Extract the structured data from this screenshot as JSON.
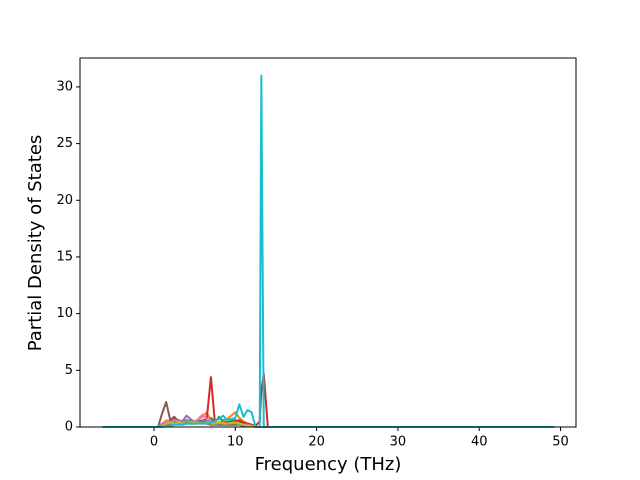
{
  "chart_data": {
    "type": "line",
    "xlabel": "Frequency (THz)",
    "ylabel": "Partial Density of States",
    "x": [
      -6.3,
      0.5,
      1.0,
      1.5,
      2.0,
      2.5,
      3.0,
      3.5,
      4.0,
      5.0,
      6.0,
      6.5,
      7.0,
      7.5,
      8.0,
      8.5,
      9.0,
      10.0,
      10.5,
      11.0,
      11.5,
      12.0,
      12.5,
      13.0,
      13.2,
      13.5,
      14.0,
      49.2
    ],
    "series": [
      {
        "color": "#1f77b4",
        "values": [
          0,
          0,
          0.3,
          0.5,
          0.4,
          0.6,
          0.5,
          0.4,
          0.5,
          0.4,
          0.6,
          0.5,
          0.8,
          0.4,
          0.3,
          0.5,
          0.4,
          0.6,
          0.5,
          0.3,
          0.2,
          0.1,
          0,
          0,
          0,
          0,
          0,
          0
        ]
      },
      {
        "color": "#ff7f0e",
        "values": [
          0,
          0,
          0.2,
          0.6,
          0.5,
          0.8,
          0.4,
          0.5,
          0.6,
          0.5,
          0.9,
          1.3,
          0.5,
          0.3,
          0.4,
          0.6,
          0.7,
          1.3,
          0.8,
          0.5,
          0.3,
          0.2,
          0,
          0,
          0,
          0,
          0,
          0
        ]
      },
      {
        "color": "#2ca02c",
        "values": [
          0,
          0,
          0.1,
          0.3,
          0.4,
          0.5,
          0.6,
          0.5,
          0.6,
          0.4,
          0.5,
          0.4,
          0.3,
          0.4,
          0.9,
          0.5,
          0.4,
          0.6,
          0.5,
          0.4,
          0.3,
          0.2,
          0,
          0,
          0,
          0,
          0,
          0
        ]
      },
      {
        "color": "#d62728",
        "values": [
          0,
          0,
          0.1,
          0.2,
          0.3,
          0.4,
          0.3,
          0.3,
          0.4,
          0.3,
          0.5,
          0.8,
          4.4,
          0.3,
          0.2,
          0.3,
          0.4,
          0.5,
          0.6,
          0.4,
          0.3,
          0.2,
          0.1,
          0.5,
          3.2,
          4.7,
          0,
          0
        ]
      },
      {
        "color": "#9467bd",
        "values": [
          0,
          0,
          0.2,
          0.4,
          0.5,
          0.7,
          0.6,
          0.5,
          1.0,
          0.4,
          0.5,
          0.6,
          0.4,
          0.3,
          0.3,
          0.4,
          0.3,
          0.4,
          0.3,
          0.2,
          0.2,
          0.1,
          0,
          0,
          0,
          0,
          0,
          0
        ]
      },
      {
        "color": "#8c564b",
        "values": [
          0,
          0,
          1.2,
          2.2,
          0.6,
          0.9,
          0.5,
          0.4,
          0.3,
          0.3,
          0.4,
          0.3,
          0.2,
          0.2,
          0.2,
          0.2,
          0.2,
          0.2,
          0.2,
          0.1,
          0.1,
          0.1,
          0,
          0,
          0,
          0,
          0,
          0
        ]
      },
      {
        "color": "#e377c2",
        "values": [
          0,
          0,
          0.3,
          0.5,
          0.4,
          0.6,
          0.5,
          0.4,
          0.5,
          0.4,
          1.1,
          0.7,
          0.5,
          0.3,
          0.3,
          0.4,
          0.3,
          0.4,
          0.3,
          0.2,
          0.2,
          0.1,
          0,
          0,
          0,
          0,
          0,
          0
        ]
      },
      {
        "color": "#7f7f7f",
        "values": [
          0,
          0,
          0.2,
          0.3,
          0.3,
          0.4,
          0.3,
          0.3,
          0.4,
          0.3,
          0.4,
          0.3,
          0.3,
          0.2,
          0.3,
          0.3,
          0.3,
          0.3,
          0.2,
          0.2,
          0.1,
          0.1,
          0,
          0,
          0,
          0,
          0,
          0
        ]
      },
      {
        "color": "#bcbd22",
        "values": [
          0,
          0,
          0.1,
          0.3,
          0.4,
          0.3,
          0.4,
          0.3,
          0.3,
          0.4,
          0.3,
          0.4,
          0.3,
          0.3,
          0.4,
          0.3,
          0.3,
          0.4,
          0.3,
          0.2,
          0.1,
          0.1,
          0,
          0,
          0,
          0,
          0,
          0
        ]
      },
      {
        "color": "#17becf",
        "values": [
          0,
          0,
          0,
          0.1,
          0.1,
          0.2,
          0.2,
          0.2,
          0.3,
          0.3,
          0.3,
          0.3,
          0.4,
          0.5,
          0.7,
          1.0,
          0.6,
          0.8,
          2.0,
          0.9,
          1.5,
          1.3,
          0,
          0,
          31.0,
          0,
          0,
          0
        ]
      }
    ],
    "xlim": [
      -9.1,
      51.9
    ],
    "xticks": [
      0,
      10,
      20,
      30,
      40,
      50
    ],
    "ylim": [
      0,
      32.55
    ],
    "yticks": [
      0,
      5,
      10,
      15,
      20,
      25,
      30
    ]
  }
}
